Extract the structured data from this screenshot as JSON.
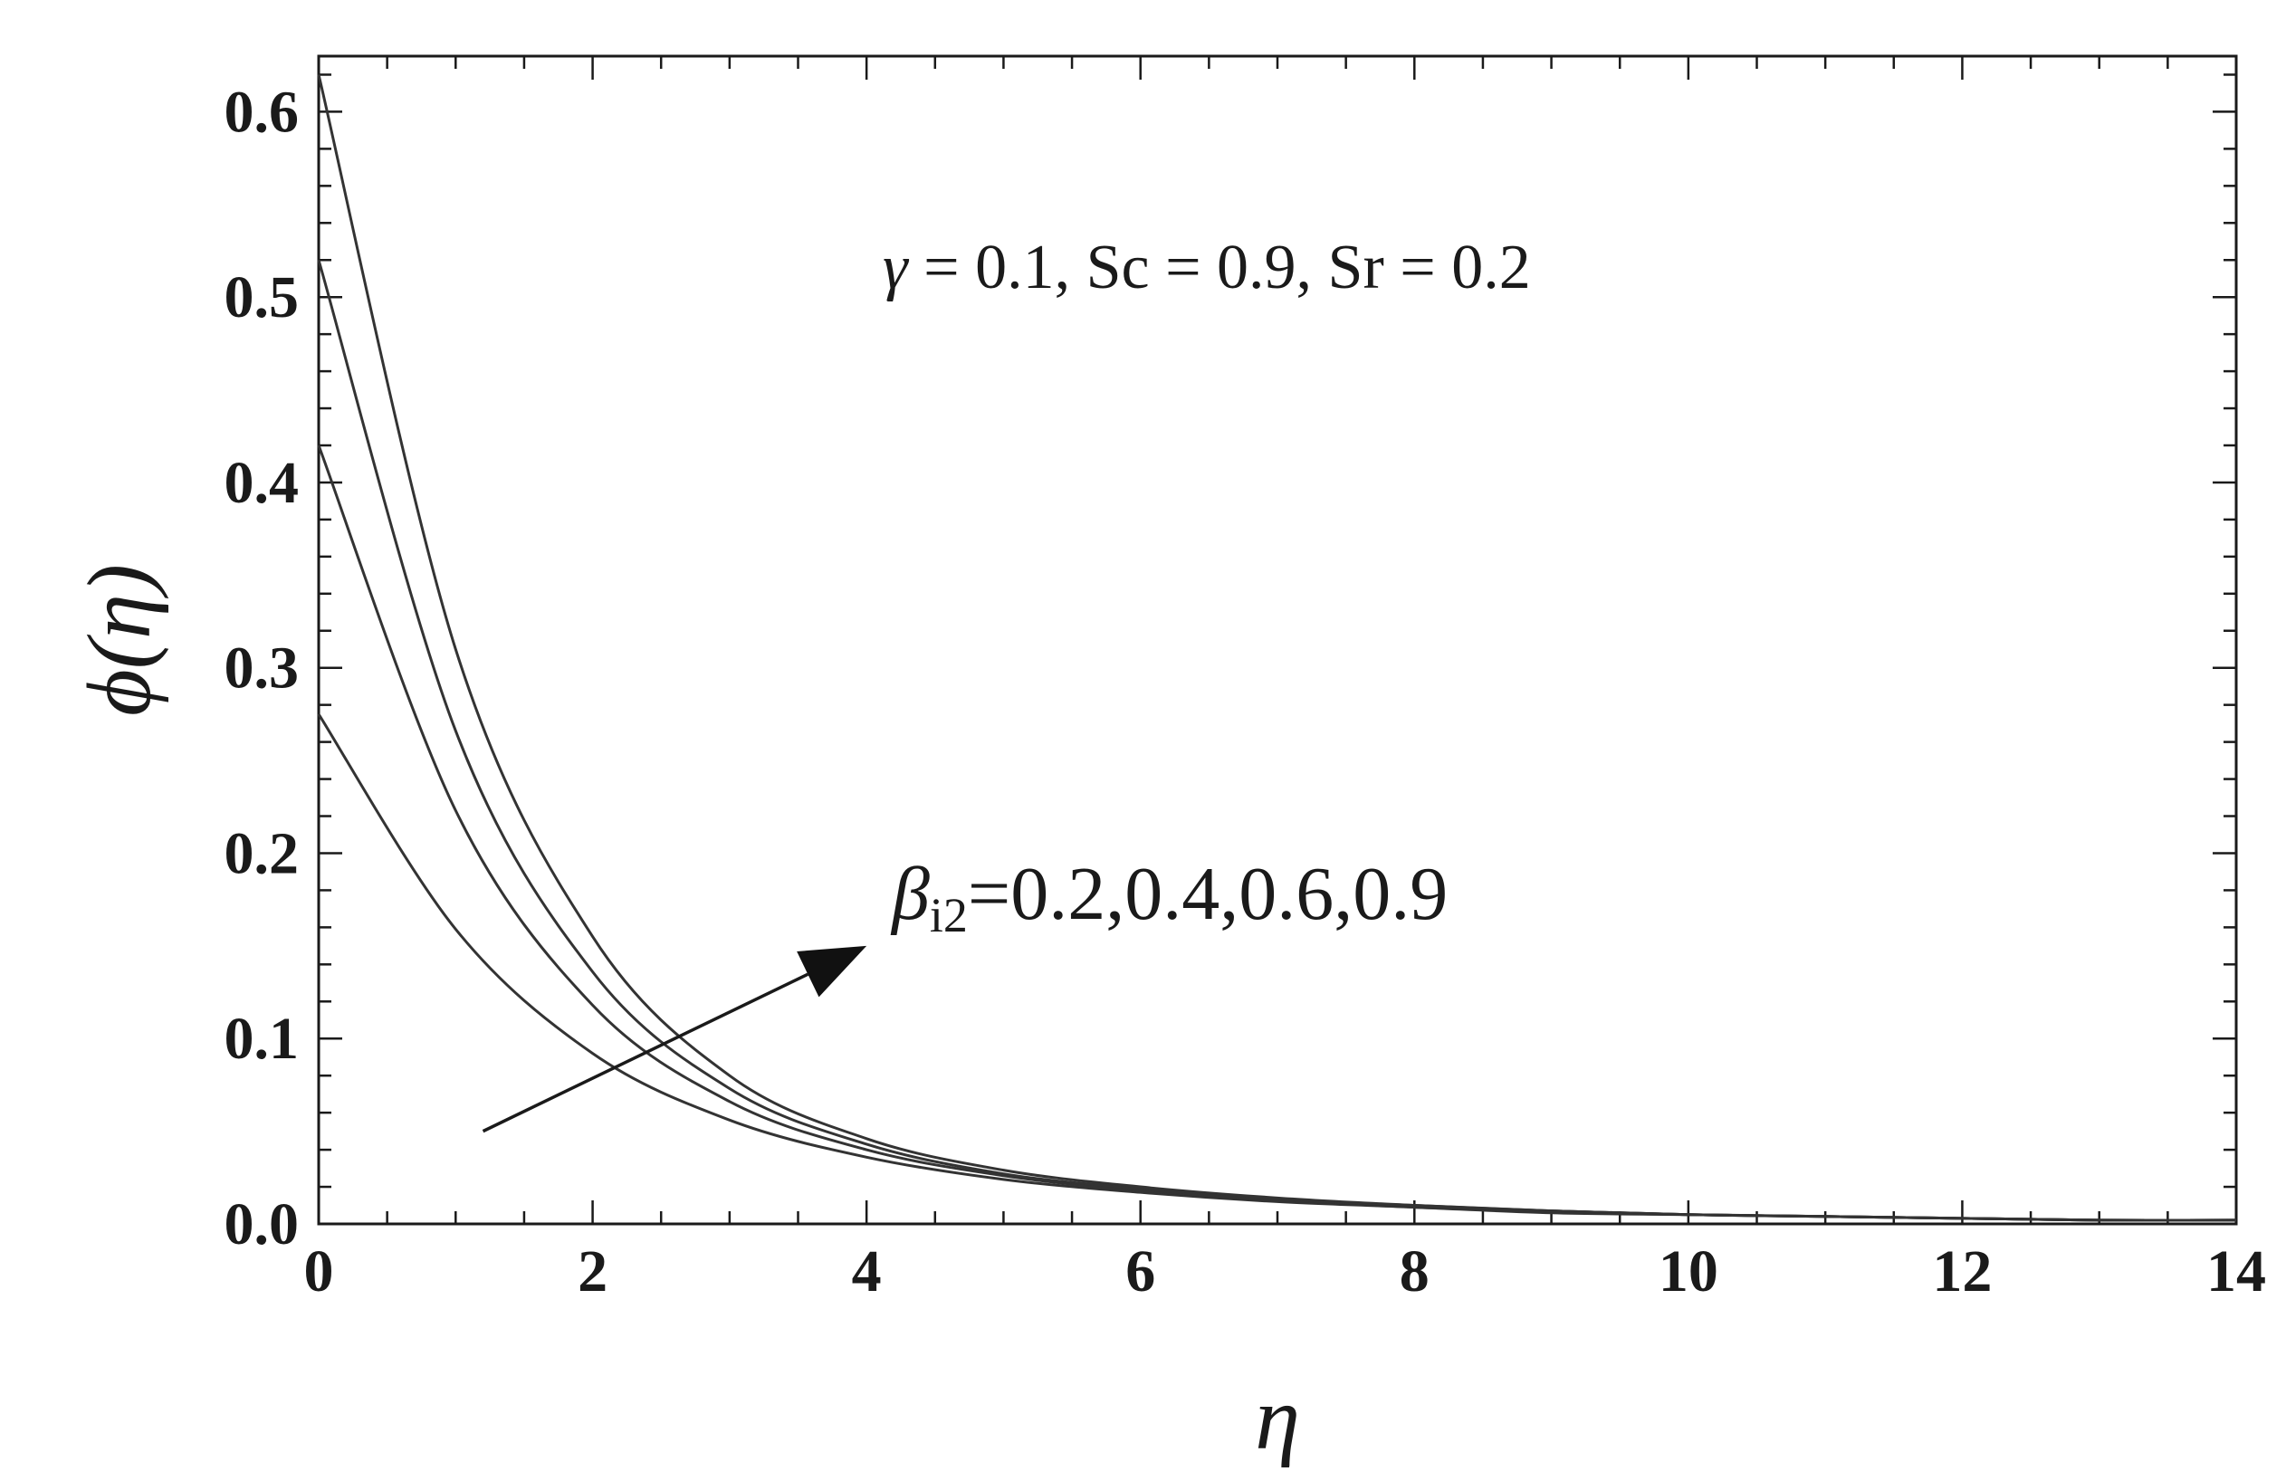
{
  "chart_data": {
    "type": "line",
    "title": "",
    "xlabel": "η",
    "ylabel": "ϕ(η)",
    "xlim": [
      0,
      14
    ],
    "ylim": [
      0,
      0.63
    ],
    "x_ticks": [
      "0",
      "2",
      "4",
      "6",
      "8",
      "10",
      "12",
      "14"
    ],
    "y_ticks": [
      "0.0",
      "0.1",
      "0.2",
      "0.3",
      "0.4",
      "0.5",
      "0.6"
    ],
    "grid": false,
    "line_color": "#333333",
    "parameter_annotation": {
      "gamma_symbol": "γ",
      "text": " = 0.1, Sc = 0.9, Sr = 0.2"
    },
    "arrow_annotation": {
      "symbol": "β",
      "subscript": "i2",
      "text": "=0.2,0.4,0.6,0.9",
      "from": [
        1.2,
        0.05
      ],
      "to": [
        4.0,
        0.15
      ]
    },
    "series": [
      {
        "x": [
          0,
          1,
          2,
          3,
          4,
          5,
          6,
          7,
          8,
          9,
          10,
          11,
          12,
          13,
          14
        ],
        "values": [
          0.275,
          0.159,
          0.092,
          0.056,
          0.036,
          0.024,
          0.017,
          0.012,
          0.009,
          0.006,
          0.005,
          0.004,
          0.003,
          0.002,
          0.002
        ]
      },
      {
        "x": [
          0,
          1,
          2,
          3,
          4,
          5,
          6,
          7,
          8,
          9,
          10,
          11,
          12,
          13,
          14
        ],
        "values": [
          0.42,
          0.223,
          0.118,
          0.066,
          0.04,
          0.026,
          0.018,
          0.013,
          0.009,
          0.007,
          0.005,
          0.004,
          0.003,
          0.002,
          0.002
        ]
      },
      {
        "x": [
          0,
          1,
          2,
          3,
          4,
          5,
          6,
          7,
          8,
          9,
          10,
          11,
          12,
          13,
          14
        ],
        "values": [
          0.52,
          0.266,
          0.136,
          0.073,
          0.043,
          0.027,
          0.019,
          0.013,
          0.01,
          0.007,
          0.005,
          0.004,
          0.003,
          0.002,
          0.002
        ]
      },
      {
        "x": [
          0,
          1,
          2,
          3,
          4,
          5,
          6,
          7,
          8,
          9,
          10,
          11,
          12,
          13,
          14
        ],
        "values": [
          0.62,
          0.31,
          0.155,
          0.08,
          0.046,
          0.029,
          0.02,
          0.014,
          0.01,
          0.007,
          0.005,
          0.004,
          0.003,
          0.002,
          0.002
        ]
      }
    ]
  }
}
